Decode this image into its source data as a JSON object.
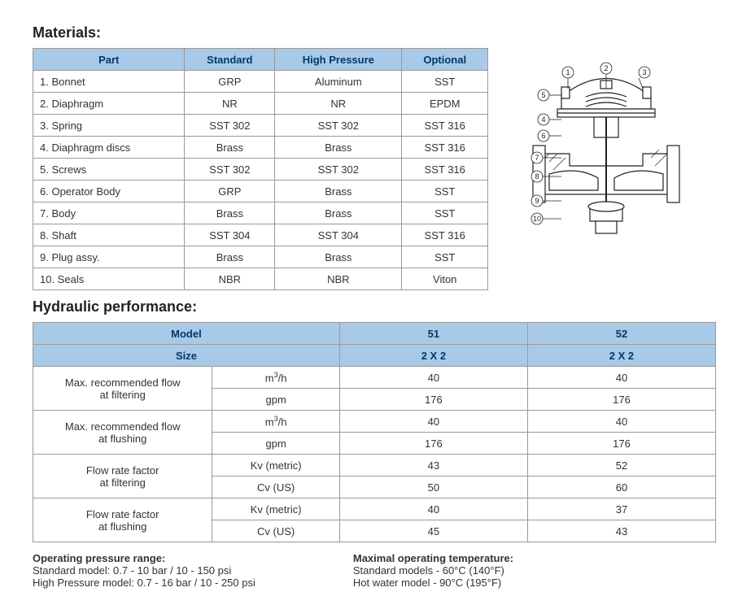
{
  "headings": {
    "materials": "Materials:",
    "hydraulic": "Hydraulic performance:"
  },
  "materials_table": {
    "headers": [
      "Part",
      "Standard",
      "High Pressure",
      "Optional"
    ],
    "rows": [
      [
        "1. Bonnet",
        "GRP",
        "Aluminum",
        "SST"
      ],
      [
        "2. Diaphragm",
        "NR",
        "NR",
        "EPDM"
      ],
      [
        "3. Spring",
        "SST 302",
        "SST 302",
        "SST 316"
      ],
      [
        "4. Diaphragm discs",
        "Brass",
        "Brass",
        "SST 316"
      ],
      [
        "5. Screws",
        "SST 302",
        "SST 302",
        "SST 316"
      ],
      [
        "6. Operator Body",
        "GRP",
        "Brass",
        "SST"
      ],
      [
        "7. Body",
        "Brass",
        "Brass",
        "SST"
      ],
      [
        "8. Shaft",
        "SST 304",
        "SST 304",
        "SST 316"
      ],
      [
        "9. Plug assy.",
        "Brass",
        "Brass",
        "SST"
      ],
      [
        "10. Seals",
        "NBR",
        "NBR",
        "Viton"
      ]
    ]
  },
  "hydraulic_table": {
    "header_row1": [
      "Model",
      "51",
      "52"
    ],
    "header_row2": [
      "Size",
      "2 X 2",
      "2 X 2"
    ],
    "groups": [
      {
        "label": "Max. recommended flow at filtering",
        "rows": [
          [
            "m³/h",
            "40",
            "40"
          ],
          [
            "gpm",
            "176",
            "176"
          ]
        ]
      },
      {
        "label": "Max. recommended flow at flushing",
        "rows": [
          [
            "m³/h",
            "40",
            "40"
          ],
          [
            "gpm",
            "176",
            "176"
          ]
        ]
      },
      {
        "label": "Flow rate factor at filtering",
        "rows": [
          [
            "Kv (metric)",
            "43",
            "52"
          ],
          [
            "Cv (US)",
            "50",
            "60"
          ]
        ]
      },
      {
        "label": "Flow rate factor at flushing",
        "rows": [
          [
            "Kv (metric)",
            "40",
            "37"
          ],
          [
            "Cv (US)",
            "45",
            "43"
          ]
        ]
      }
    ]
  },
  "notes": {
    "pressure_title": "Operating pressure range:",
    "pressure_l1": "Standard model: 0.7 - 10 bar / 10 - 150 psi",
    "pressure_l2": "High Pressure model: 0.7 - 16 bar / 10 - 250 psi",
    "temp_title": "Maximal operating temperature:",
    "temp_l1": "Standard models - 60°C (140°F)",
    "temp_l2": "Hot water model - 90°C (195°F)"
  },
  "diagram": {
    "callouts": [
      "1",
      "2",
      "3",
      "4",
      "5",
      "6",
      "7",
      "8",
      "9",
      "10"
    ],
    "stroke": "#222",
    "fill": "#fff"
  }
}
